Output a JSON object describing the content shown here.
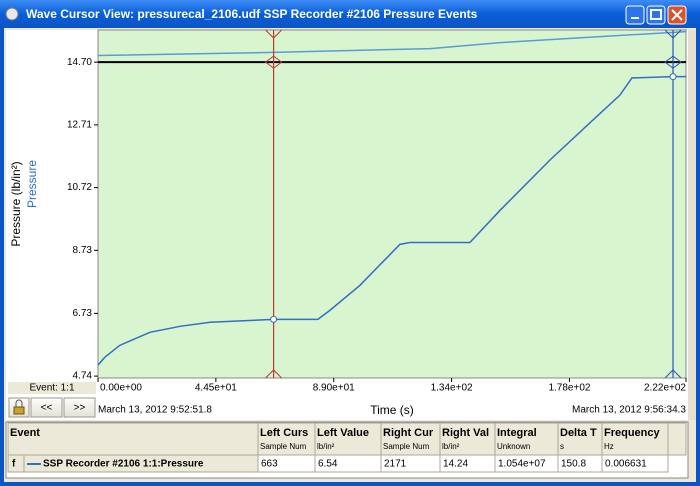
{
  "window": {
    "title": "Wave Cursor View: pressurecal_2106.udf SSP Recorder #2106 Pressure Events"
  },
  "chart_data": {
    "type": "line",
    "ylabel": "Pressure (lb/in²)",
    "ylabel2": "Pressure",
    "xlabel": "Time (s)",
    "start_time": "March 13, 2012 9:52:51.8",
    "end_time": "March 13, 2012 9:56:34.3",
    "xlim": [
      0,
      222
    ],
    "ylim": [
      4.68,
      15.72
    ],
    "xticks": [
      {
        "value": 0,
        "label": "0.00e+00"
      },
      {
        "value": 44.5,
        "label": "4.45e+01"
      },
      {
        "value": 89,
        "label": "8.90e+01"
      },
      {
        "value": 133.5,
        "label": "1.34e+02"
      },
      {
        "value": 178,
        "label": "1.78e+02"
      },
      {
        "value": 222,
        "label": "2.22e+02"
      }
    ],
    "yticks": [
      {
        "value": 4.74,
        "label": "4.74"
      },
      {
        "value": 6.73,
        "label": "6.73"
      },
      {
        "value": 8.73,
        "label": "8.73"
      },
      {
        "value": 10.72,
        "label": "10.72"
      },
      {
        "value": 12.71,
        "label": "12.71"
      },
      {
        "value": 14.7,
        "label": "14.70"
      }
    ],
    "reference_line": 14.7,
    "reference_color": "#000000",
    "cursors": {
      "left": 66.3,
      "right": 217.1,
      "left_color": "#c0392b",
      "right_color": "#2a52be"
    },
    "background": "#d8f5d0",
    "series": [
      {
        "name": "Pressure",
        "color": "#2f6fc4",
        "x": [
          0,
          2.6,
          8.3,
          19.6,
          31,
          42.3,
          66.3,
          83,
          87.6,
          98.9,
          114,
          117.8,
          140.4,
          151.8,
          170.7,
          189.5,
          197,
          201.6,
          217.1,
          222
        ],
        "values": [
          5.09,
          5.34,
          5.72,
          6.13,
          6.32,
          6.45,
          6.54,
          6.54,
          6.83,
          7.62,
          8.92,
          8.98,
          8.98,
          10.0,
          11.6,
          13.07,
          13.65,
          14.2,
          14.24,
          14.24
        ]
      },
      {
        "color": "#5b9bd5",
        "x": [
          0,
          66.3,
          125.5,
          151.8,
          189.5,
          222
        ],
        "values": [
          14.91,
          15.01,
          15.13,
          15.32,
          15.51,
          15.67
        ]
      }
    ]
  },
  "controls": {
    "event": "Event: 1:1",
    "prev": "<<",
    "next": ">>"
  },
  "table": {
    "header": [
      {
        "title": "Event",
        "unit": ""
      },
      {
        "title": "Left Curs",
        "unit": "Sample Num"
      },
      {
        "title": "Left Value",
        "unit": "lb/in²"
      },
      {
        "title": "Right Cur",
        "unit": "Sample Num"
      },
      {
        "title": "Right Val",
        "unit": "lb/in²"
      },
      {
        "title": "Integral",
        "unit": "Unknown"
      },
      {
        "title": "Delta T",
        "unit": "s"
      },
      {
        "title": "Frequency",
        "unit": "Hz"
      }
    ],
    "rows": [
      [
        "SSP Recorder #2106 1:1:Pressure",
        "663",
        "6.54",
        "2171",
        "14.24",
        "1.054e+07",
        "150.8",
        "0.006631"
      ]
    ],
    "row_flag": "f"
  }
}
